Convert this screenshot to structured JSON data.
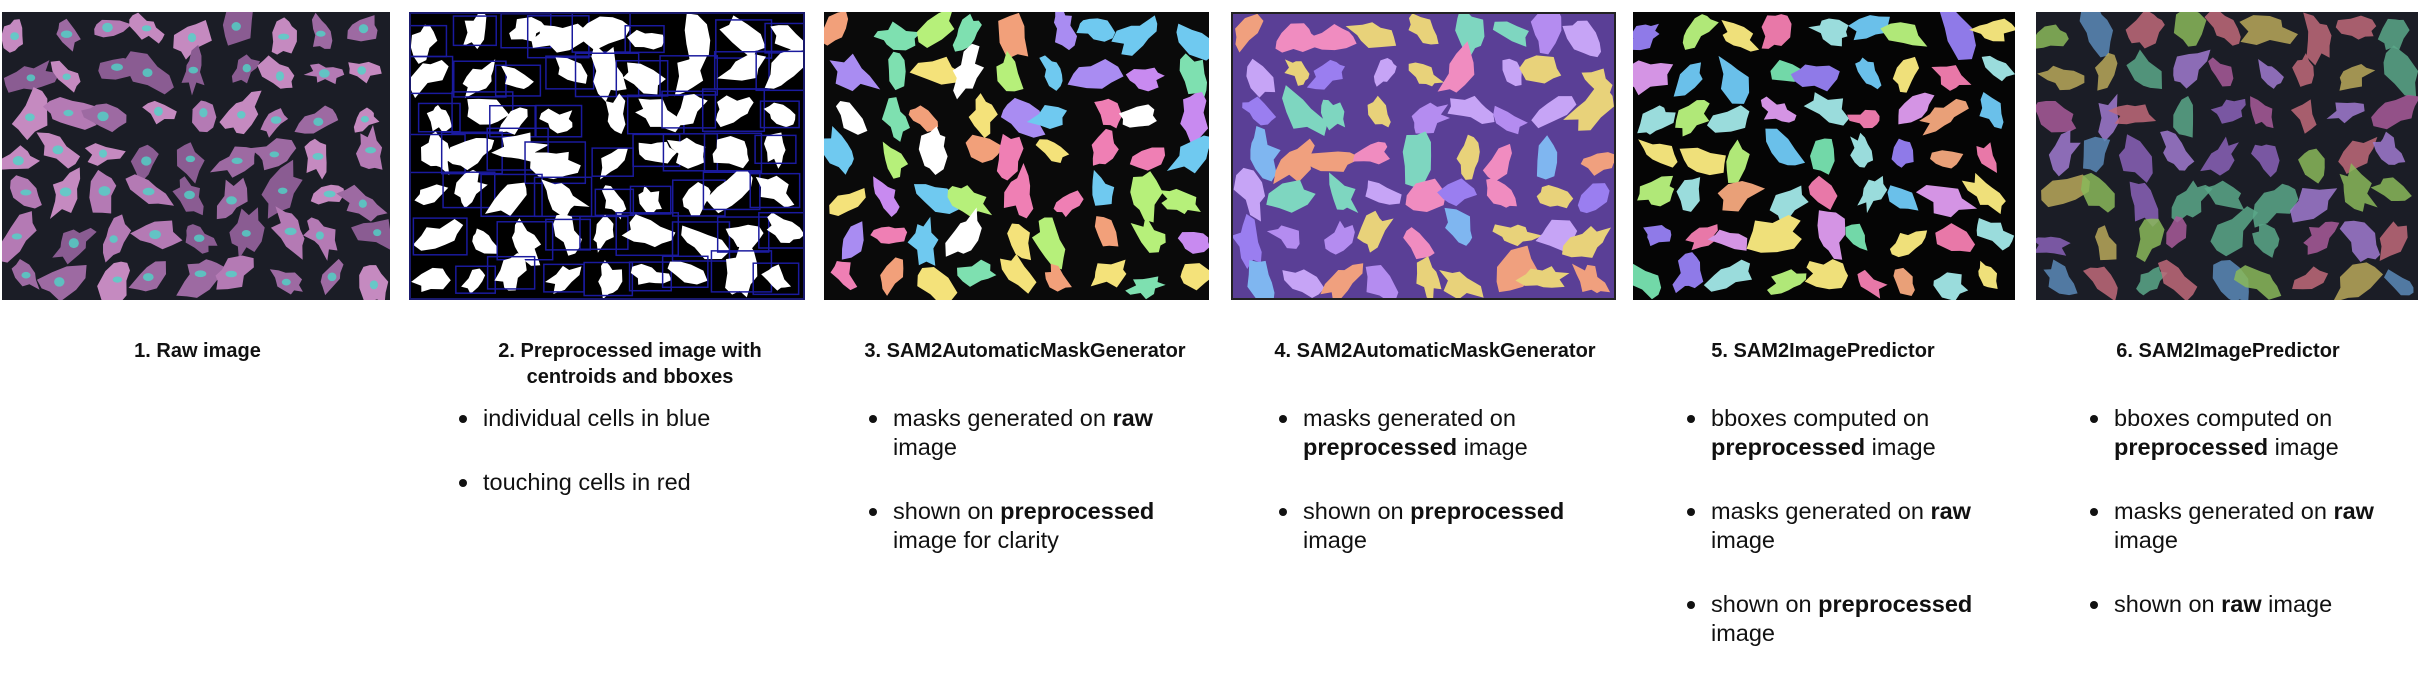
{
  "panels": [
    {
      "caption": [
        "1. Raw image"
      ],
      "bullets": [],
      "image": {
        "kind": "raw",
        "bg": "#1b1d26",
        "palette": [
          "#b47ab4",
          "#9d6aa2",
          "#c58ac0",
          "#8a5c92"
        ],
        "accent": "#4fd6c8"
      }
    },
    {
      "caption": [
        "2. Preprocessed image with",
        "centroids and bboxes"
      ],
      "bullets": [
        [
          {
            "t": "individual cells in blue",
            "b": false
          }
        ],
        [
          {
            "t": "touching cells in red",
            "b": false
          }
        ]
      ],
      "image": {
        "kind": "binary",
        "bg": "#000000",
        "palette": [
          "#ffffff"
        ],
        "accent": "#1a1a9e"
      }
    },
    {
      "caption": [
        "3. SAM2AutomaticMaskGenerator"
      ],
      "bullets": [
        [
          {
            "t": "masks generated on ",
            "b": false
          },
          {
            "t": "raw",
            "b": true
          },
          {
            "t": " image",
            "b": false
          }
        ],
        [
          {
            "t": "shown on ",
            "b": false
          },
          {
            "t": "preprocessed",
            "b": true
          },
          {
            "t": " image for clarity",
            "b": false
          }
        ]
      ],
      "image": {
        "kind": "masks",
        "bg": "#0a0a0a",
        "palette": [
          "#a98cf2",
          "#f2a07a",
          "#7ee0b0",
          "#f4e27a",
          "#ef7fb4",
          "#6fc9f0",
          "#b6f07a",
          "#ffffff",
          "#c88af0"
        ],
        "accent": "#ffffff"
      }
    },
    {
      "caption": [
        "4. SAM2AutomaticMaskGenerator"
      ],
      "bullets": [
        [
          {
            "t": "masks generated on ",
            "b": false
          },
          {
            "t": "preprocessed",
            "b": true
          },
          {
            "t": " image",
            "b": false
          }
        ],
        [
          {
            "t": "shown on ",
            "b": false
          },
          {
            "t": "preprocessed",
            "b": true
          },
          {
            "t": " image",
            "b": false
          }
        ]
      ],
      "image": {
        "kind": "masks",
        "bg": "#5a3f96",
        "palette": [
          "#9a7ef0",
          "#f0a07e",
          "#7ed6c0",
          "#e8d27a",
          "#f08cc0",
          "#7fb6f0",
          "#b48cf0",
          "#c6a4f6"
        ],
        "accent": "#ffffff"
      }
    },
    {
      "caption": [
        "5. SAM2ImagePredictor"
      ],
      "bullets": [
        [
          {
            "t": "bboxes computed on ",
            "b": false
          },
          {
            "t": "preprocessed",
            "b": true
          },
          {
            "t": " image",
            "b": false
          }
        ],
        [
          {
            "t": "masks generated on ",
            "b": false
          },
          {
            "t": "raw",
            "b": true
          },
          {
            "t": " image",
            "b": false
          }
        ],
        [
          {
            "t": "shown on ",
            "b": false
          },
          {
            "t": "preprocessed",
            "b": true
          },
          {
            "t": " image",
            "b": false
          }
        ]
      ],
      "image": {
        "kind": "masks",
        "bg": "#050505",
        "palette": [
          "#8f7ae8",
          "#e9a078",
          "#72d8a8",
          "#efe07a",
          "#e878a8",
          "#6ac0ea",
          "#b0e878",
          "#d494e4",
          "#9adcdc"
        ],
        "accent": "#ffffff"
      }
    },
    {
      "caption": [
        "6. SAM2ImagePredictor"
      ],
      "bullets": [
        [
          {
            "t": "bboxes computed on ",
            "b": false
          },
          {
            "t": "preprocessed",
            "b": true
          },
          {
            "t": " image",
            "b": false
          }
        ],
        [
          {
            "t": "masks generated on ",
            "b": false
          },
          {
            "t": "raw",
            "b": true
          },
          {
            "t": " image",
            "b": false
          }
        ],
        [
          {
            "t": "shown on ",
            "b": false
          },
          {
            "t": "raw",
            "b": true
          },
          {
            "t": " image",
            "b": false
          }
        ]
      ],
      "image": {
        "kind": "masks-raw",
        "bg": "#1b1d26",
        "palette": [
          "#8a62b8",
          "#c06a7a",
          "#5aa88a",
          "#b8a85a",
          "#a85a9a",
          "#5a8ab8",
          "#8ab85a",
          "#a07ad0"
        ],
        "accent": "#e06a4a"
      }
    }
  ]
}
